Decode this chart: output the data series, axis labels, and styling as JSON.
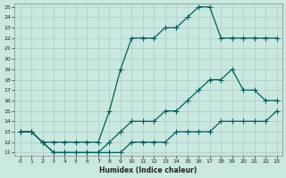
{
  "xlabel": "Humidex (Indice chaleur)",
  "ylabel": "",
  "bg_color": "#c8e8e0",
  "grid_color": "#b0ccc8",
  "line_color": "#006060",
  "line1_x": [
    0,
    1,
    2,
    3,
    4,
    5,
    6,
    7,
    8,
    9,
    10,
    11,
    12,
    13,
    14,
    15,
    16,
    17,
    18,
    19,
    20,
    21,
    22,
    23
  ],
  "line1_y": [
    13,
    13,
    12,
    12,
    12,
    12,
    12,
    12,
    15,
    19,
    22,
    22,
    22,
    23,
    23,
    24,
    25,
    25,
    22,
    22,
    22,
    22,
    22,
    22
  ],
  "line2_x": [
    0,
    1,
    2,
    3,
    4,
    5,
    6,
    7,
    8,
    9,
    10,
    11,
    12,
    13,
    14,
    15,
    16,
    17,
    18,
    19,
    20,
    21,
    22,
    23
  ],
  "line2_y": [
    13,
    13,
    12,
    11,
    11,
    11,
    11,
    11,
    12,
    13,
    14,
    14,
    14,
    15,
    15,
    16,
    17,
    18,
    18,
    19,
    17,
    17,
    16,
    16
  ],
  "line3_x": [
    0,
    1,
    2,
    3,
    4,
    5,
    6,
    7,
    8,
    9,
    10,
    11,
    12,
    13,
    14,
    15,
    16,
    17,
    18,
    19,
    20,
    21,
    22,
    23
  ],
  "line3_y": [
    13,
    13,
    12,
    11,
    11,
    11,
    11,
    11,
    11,
    11,
    12,
    12,
    12,
    12,
    13,
    13,
    13,
    13,
    14,
    14,
    14,
    14,
    14,
    15
  ],
  "ylim": [
    11,
    25
  ],
  "xlim": [
    0,
    23
  ],
  "yticks": [
    11,
    12,
    13,
    14,
    15,
    16,
    17,
    18,
    19,
    20,
    21,
    22,
    23,
    24,
    25
  ],
  "xticks": [
    0,
    1,
    2,
    3,
    4,
    5,
    6,
    7,
    8,
    9,
    10,
    11,
    12,
    13,
    14,
    15,
    16,
    17,
    18,
    19,
    20,
    21,
    22,
    23
  ]
}
